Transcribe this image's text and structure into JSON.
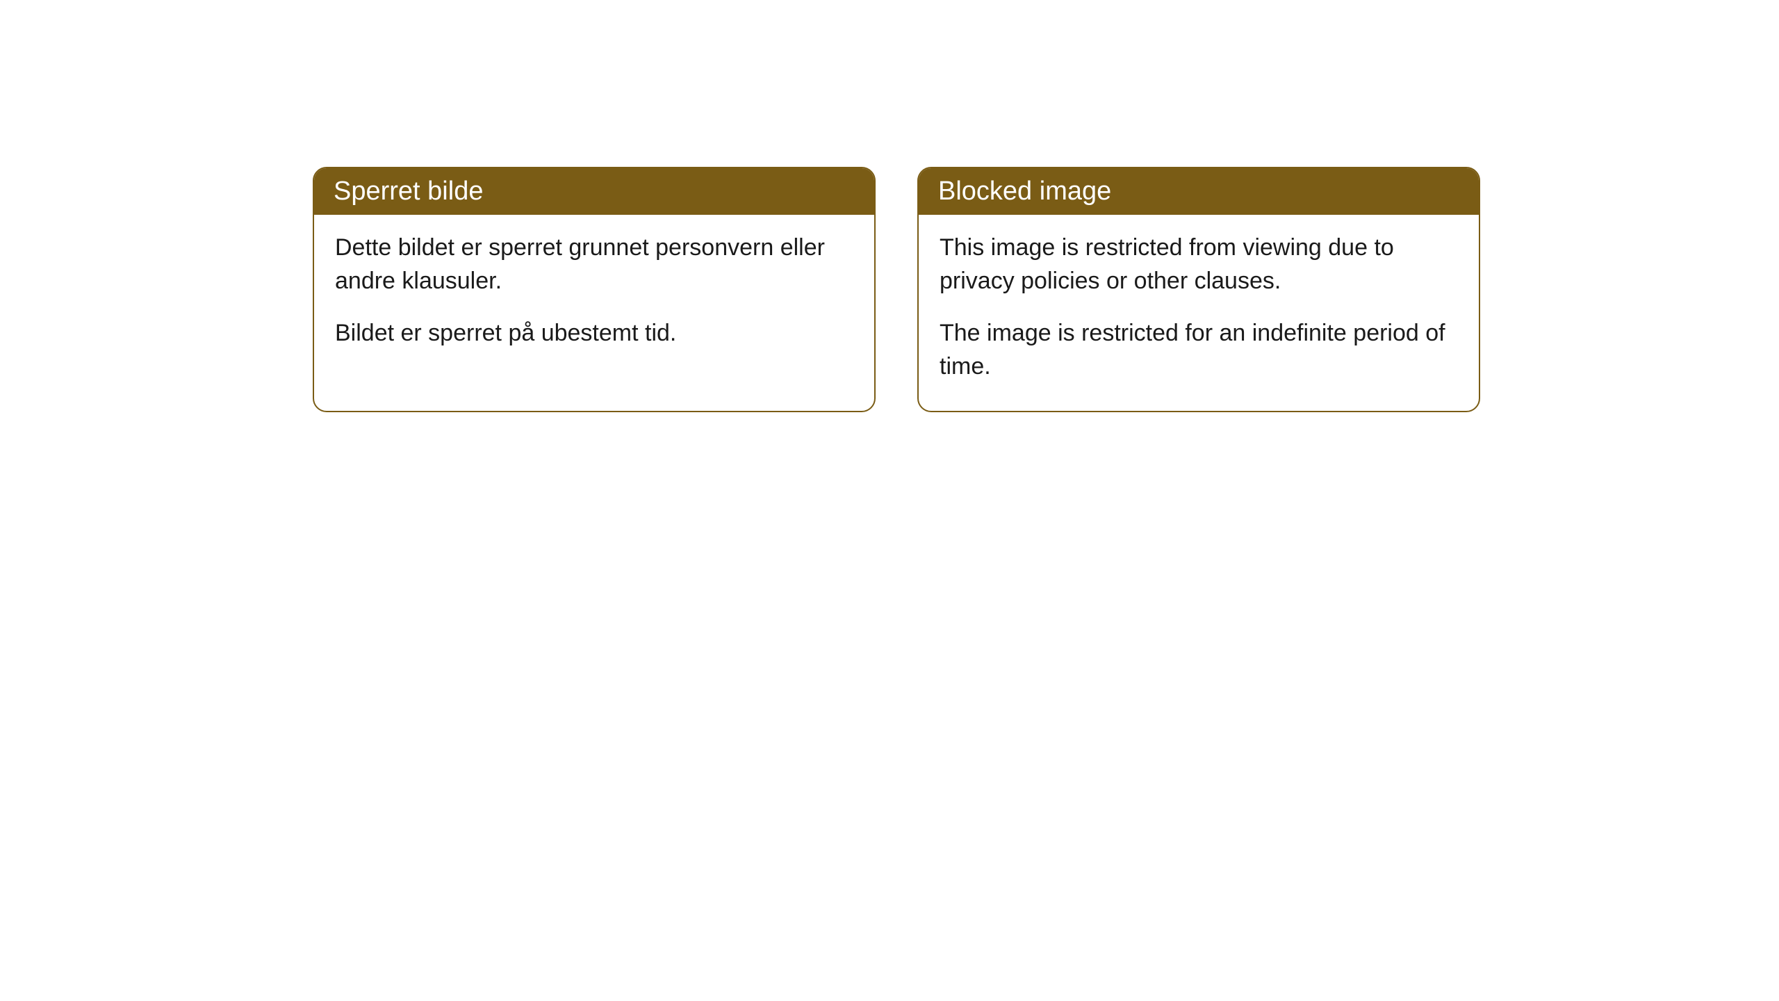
{
  "cards": [
    {
      "title": "Sperret bilde",
      "paragraph1": "Dette bildet er sperret grunnet personvern eller andre klausuler.",
      "paragraph2": "Bildet er sperret på ubestemt tid."
    },
    {
      "title": "Blocked image",
      "paragraph1": "This image is restricted from viewing due to privacy policies or other clauses.",
      "paragraph2": "The image is restricted for an indefinite period of time."
    }
  ],
  "styling": {
    "header_bg_color": "#7a5c15",
    "header_text_color": "#ffffff",
    "border_color": "#7a5c15",
    "body_bg_color": "#ffffff",
    "body_text_color": "#1a1a1a",
    "border_radius": 20,
    "header_fontsize": 38,
    "body_fontsize": 34
  }
}
